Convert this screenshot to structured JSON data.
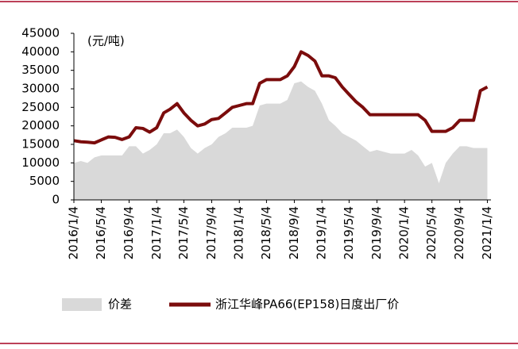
{
  "chart_data": {
    "type": "line-area",
    "unit_label": "(元/吨)",
    "x": [
      "2016/1/4",
      "2016/2/4",
      "2016/3/4",
      "2016/4/4",
      "2016/5/4",
      "2016/6/4",
      "2016/7/4",
      "2016/8/4",
      "2016/9/4",
      "2016/10/4",
      "2016/11/4",
      "2016/12/4",
      "2017/1/4",
      "2017/2/4",
      "2017/3/4",
      "2017/4/4",
      "2017/5/4",
      "2017/6/4",
      "2017/7/4",
      "2017/8/4",
      "2017/9/4",
      "2017/10/4",
      "2017/11/4",
      "2017/12/4",
      "2018/1/4",
      "2018/2/4",
      "2018/3/4",
      "2018/4/4",
      "2018/5/4",
      "2018/6/4",
      "2018/7/4",
      "2018/8/4",
      "2018/9/4",
      "2018/10/4",
      "2018/11/4",
      "2018/12/4",
      "2019/1/4",
      "2019/2/4",
      "2019/3/4",
      "2019/4/4",
      "2019/5/4",
      "2019/6/4",
      "2019/7/4",
      "2019/8/4",
      "2019/9/4",
      "2019/10/4",
      "2019/11/4",
      "2019/12/4",
      "2020/1/4",
      "2020/2/4",
      "2020/3/4",
      "2020/4/4",
      "2020/5/4",
      "2020/6/4",
      "2020/7/4",
      "2020/8/4",
      "2020/9/4",
      "2020/10/4",
      "2020/11/4",
      "2020/12/4",
      "2021/1/4"
    ],
    "series": [
      {
        "name": "价差",
        "kind": "area",
        "color": "#d9d9d9",
        "values": [
          10000,
          10500,
          10000,
          11500,
          12000,
          12000,
          12000,
          12000,
          14500,
          14500,
          12500,
          13500,
          15000,
          18000,
          18000,
          19000,
          17000,
          14000,
          12500,
          14000,
          15000,
          17000,
          18000,
          19500,
          19500,
          19500,
          20000,
          25500,
          26000,
          26000,
          26000,
          27000,
          31500,
          32000,
          30500,
          29500,
          26000,
          21500,
          20000,
          18000,
          17000,
          16000,
          14500,
          13000,
          13500,
          13000,
          12500,
          12500,
          12500,
          13500,
          12000,
          9000,
          10000,
          4500,
          10000,
          12500,
          14500,
          14500,
          14000,
          14000,
          14000
        ]
      },
      {
        "name": "浙江华峰PA66(EP158)日度出厂价",
        "kind": "line",
        "color": "#7b0c0c",
        "values": [
          16000,
          15700,
          15600,
          15400,
          16200,
          17000,
          16900,
          16300,
          17000,
          19500,
          19300,
          18300,
          19500,
          23500,
          24500,
          26000,
          23500,
          21500,
          20000,
          20500,
          21700,
          22000,
          23500,
          25000,
          25500,
          26000,
          26000,
          31500,
          32500,
          32500,
          32500,
          33500,
          36000,
          40000,
          39000,
          37500,
          33500,
          33500,
          33000,
          30500,
          28500,
          26500,
          25000,
          23000,
          23000,
          23000,
          23000,
          23000,
          23000,
          23000,
          23000,
          21500,
          18500,
          18500,
          18500,
          19500,
          21500,
          21500,
          21500,
          29500,
          30500
        ]
      }
    ],
    "xlim": [
      "2016/1/4",
      "2021/1/20"
    ],
    "xticks": [
      "2016/1/4",
      "2016/5/4",
      "2016/9/4",
      "2017/1/4",
      "2017/5/4",
      "2017/9/4",
      "2018/1/4",
      "2018/5/4",
      "2018/9/4",
      "2019/1/4",
      "2019/5/4",
      "2019/9/4",
      "2020/1/4",
      "2020/5/4",
      "2020/9/4",
      "2021/1/4"
    ],
    "ylim": [
      0,
      45000
    ],
    "yticks": [
      0,
      5000,
      10000,
      15000,
      20000,
      25000,
      30000,
      35000,
      40000,
      45000
    ]
  }
}
